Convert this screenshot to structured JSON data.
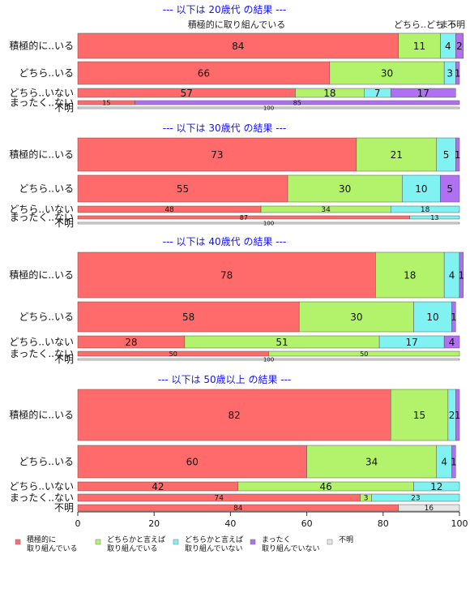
{
  "chart_data": {
    "type": "bar",
    "orientation": "horizontal",
    "stacked": true,
    "xlim": [
      0,
      100
    ],
    "x_ticks": [
      0,
      20,
      40,
      60,
      80,
      100
    ],
    "top_labels": [
      "積極的に取り組んでいる",
      "どちら..どち",
      "まっ",
      "不明"
    ],
    "series": [
      {
        "name": "積極的に取り組んでいる",
        "color": "#ff6b6b"
      },
      {
        "name": "どちらかと言えば取り組んでいる",
        "color": "#b3f26b"
      },
      {
        "name": "どちらかと言えば取り組んでいない",
        "color": "#80f2f2"
      },
      {
        "name": "まったく取り組んでいない",
        "color": "#b070f2"
      },
      {
        "name": "不明",
        "color": "#e6e6e6"
      }
    ],
    "legend": [
      {
        "line1": "積極的に",
        "line2": "取り組んでいる",
        "color": "#ff6b6b"
      },
      {
        "line1": "どちらかと言えば",
        "line2": "取り組んでいる",
        "color": "#b3f26b"
      },
      {
        "line1": "どちらかと言えば",
        "line2": "取り組んでいない",
        "color": "#80f2f2"
      },
      {
        "line1": "まったく",
        "line2": "取り組んでいない",
        "color": "#b070f2"
      },
      {
        "line1": "不明",
        "line2": "",
        "color": "#e6e6e6"
      }
    ],
    "panels": [
      {
        "title": "--- 以下は 20歳代 の結果 ---",
        "rows": [
          {
            "label": "積極的に..いる",
            "values": [
              84,
              11,
              4,
              2,
              0
            ]
          },
          {
            "label": "どちら..いる",
            "values": [
              66,
              30,
              3,
              1,
              0
            ]
          },
          {
            "label": "どちら..いない",
            "values": [
              57,
              18,
              7,
              17,
              0
            ]
          },
          {
            "label": "まったく..ない",
            "values": [
              15,
              0,
              0,
              85,
              0
            ]
          },
          {
            "label": "不明",
            "values": [
              0,
              0,
              0,
              0,
              100
            ]
          }
        ]
      },
      {
        "title": "--- 以下は 30歳代 の結果 ---",
        "rows": [
          {
            "label": "積極的に..いる",
            "values": [
              73,
              21,
              5,
              1,
              0
            ]
          },
          {
            "label": "どちら..いる",
            "values": [
              55,
              30,
              10,
              5,
              0
            ]
          },
          {
            "label": "どちら..いない",
            "values": [
              48,
              34,
              18,
              0,
              0
            ]
          },
          {
            "label": "まったく..ない",
            "values": [
              87,
              0,
              13,
              0,
              0
            ]
          },
          {
            "label": "不明",
            "values": [
              0,
              0,
              0,
              0,
              100
            ]
          }
        ]
      },
      {
        "title": "--- 以下は 40歳代 の結果 ---",
        "rows": [
          {
            "label": "積極的に..いる",
            "values": [
              78,
              18,
              4,
              1,
              0
            ]
          },
          {
            "label": "どちら..いる",
            "values": [
              58,
              30,
              10,
              1,
              0
            ]
          },
          {
            "label": "どちら..いない",
            "values": [
              28,
              51,
              17,
              4,
              0
            ]
          },
          {
            "label": "まったく..ない",
            "values": [
              50,
              50,
              0,
              0,
              0
            ]
          },
          {
            "label": "不明",
            "values": [
              0,
              0,
              0,
              0,
              100
            ]
          }
        ]
      },
      {
        "title": "--- 以下は 50歳以上 の結果 ---",
        "rows": [
          {
            "label": "積極的に..いる",
            "values": [
              82,
              15,
              2,
              1,
              0
            ]
          },
          {
            "label": "どちら..いる",
            "values": [
              60,
              34,
              4,
              1,
              0
            ]
          },
          {
            "label": "どちら..いない",
            "values": [
              42,
              46,
              12,
              0,
              0
            ]
          },
          {
            "label": "まったく..ない",
            "values": [
              74,
              3,
              23,
              0,
              0
            ]
          },
          {
            "label": "不明",
            "values": [
              84,
              0,
              0,
              0,
              16
            ]
          }
        ]
      }
    ]
  }
}
